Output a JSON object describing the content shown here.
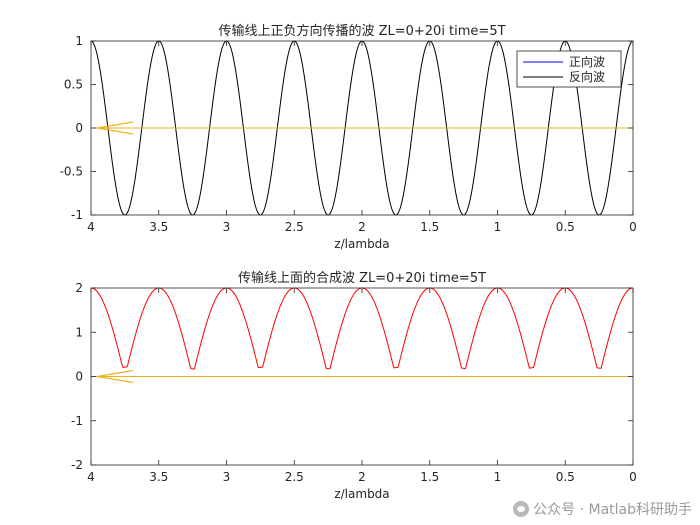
{
  "chart_data": [
    {
      "type": "line",
      "title": "传输线上正负方向传播的波  ZL=0+20i  time=5T",
      "xlabel": "z/lambda",
      "ylabel": "",
      "xlim": [
        0,
        4
      ],
      "x_reversed": true,
      "ylim": [
        -1,
        1
      ],
      "xticks": [
        4,
        3.5,
        3,
        2.5,
        2,
        1.5,
        1,
        0.5,
        0
      ],
      "xtick_labels": [
        "4",
        "3.5",
        "3",
        "2.5",
        "2",
        "1.5",
        "1",
        "0.5",
        "0"
      ],
      "yticks": [
        -1,
        -0.5,
        0,
        0.5,
        1
      ],
      "ytick_labels": [
        "-1",
        "-0.5",
        "0",
        "0.5",
        "1"
      ],
      "grid": false,
      "legend_position": "top-right",
      "series": [
        {
          "name": "正向波",
          "color": "#0000ff",
          "function": "cos",
          "amplitude": 1,
          "wavelengths_per_unit": 2,
          "x": [
            0,
            4
          ],
          "visible_note": ""
        },
        {
          "name": "反向波",
          "color": "#000000",
          "function": "cos",
          "amplitude": 1,
          "wavelengths_per_unit": 2,
          "x": [
            0,
            4
          ]
        },
        {
          "name": "",
          "color": "#edb120",
          "function": "zero",
          "x": [
            0,
            4
          ]
        }
      ],
      "annotations": [
        {
          "type": "arrow",
          "at": [
            4,
            0
          ],
          "direction": "left",
          "color": "#edb120"
        }
      ]
    },
    {
      "type": "line",
      "title": "传输线上面的合成波  ZL=0+20i  time=5T",
      "xlabel": "z/lambda",
      "ylabel": "",
      "xlim": [
        0,
        4
      ],
      "x_reversed": true,
      "ylim": [
        -2,
        2
      ],
      "xticks": [
        4,
        3.5,
        3,
        2.5,
        2,
        1.5,
        1,
        0.5,
        0
      ],
      "xtick_labels": [
        "4",
        "3.5",
        "3",
        "2.5",
        "2",
        "1.5",
        "1",
        "0.5",
        "0"
      ],
      "yticks": [
        -2,
        -1,
        0,
        1,
        2
      ],
      "ytick_labels": [
        "-2",
        "-1",
        "0",
        "1",
        "2"
      ],
      "grid": false,
      "series": [
        {
          "name": "",
          "color": "#ff0000",
          "function": "abs2cos",
          "amplitude": 2,
          "wavelengths_per_unit": 2,
          "x": [
            0,
            4
          ]
        },
        {
          "name": "",
          "color": "#edb120",
          "function": "zero",
          "x": [
            0,
            4
          ]
        }
      ],
      "annotations": [
        {
          "type": "arrow",
          "at": [
            4,
            0
          ],
          "direction": "left",
          "color": "#edb120"
        }
      ]
    }
  ],
  "watermark": {
    "text": "公众号 · Matlab科研助手",
    "icon": "wechat-icon"
  }
}
